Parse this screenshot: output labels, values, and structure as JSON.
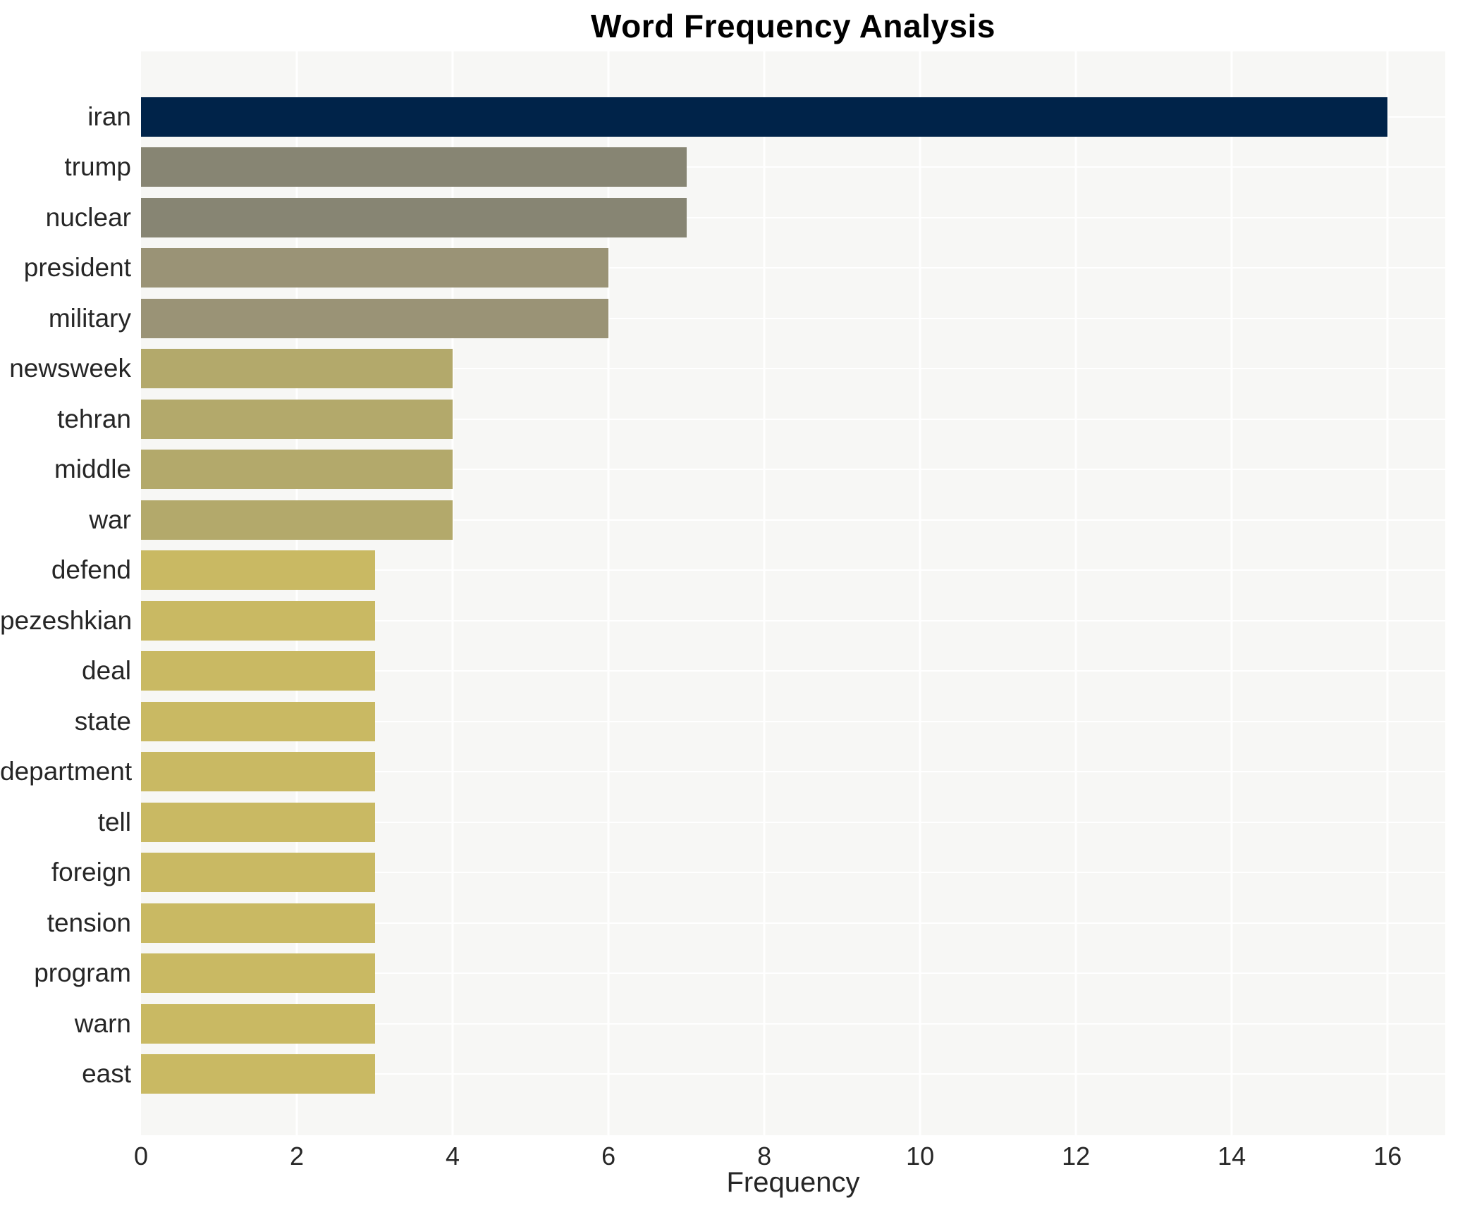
{
  "title": "Word Frequency Analysis",
  "chart_data": {
    "type": "bar",
    "orientation": "horizontal",
    "title": "Word Frequency Analysis",
    "xlabel": "Frequency",
    "ylabel": "",
    "categories": [
      "iran",
      "trump",
      "nuclear",
      "president",
      "military",
      "newsweek",
      "tehran",
      "middle",
      "war",
      "defend",
      "pezeshkian",
      "deal",
      "state",
      "department",
      "tell",
      "foreign",
      "tension",
      "program",
      "warn",
      "east"
    ],
    "values": [
      16,
      7,
      7,
      6,
      6,
      4,
      4,
      4,
      4,
      3,
      3,
      3,
      3,
      3,
      3,
      3,
      3,
      3,
      3,
      3
    ],
    "bar_colors": [
      "#002349",
      "#878573",
      "#878573",
      "#9a9376",
      "#9a9376",
      "#b3a96b",
      "#b3a96b",
      "#b3a96b",
      "#b3a96b",
      "#c9b963",
      "#c9b963",
      "#c9b963",
      "#c9b963",
      "#c9b963",
      "#c9b963",
      "#c9b963",
      "#c9b963",
      "#c9b963",
      "#c9b963",
      "#c9b963"
    ],
    "xticks": [
      0,
      2,
      4,
      6,
      8,
      10,
      12,
      14,
      16
    ],
    "xlim": [
      0,
      16.74
    ],
    "grid": true,
    "grid_color": "#ffffff",
    "plot_background": "#f7f7f5",
    "text_color": "#262626",
    "legend": false
  }
}
